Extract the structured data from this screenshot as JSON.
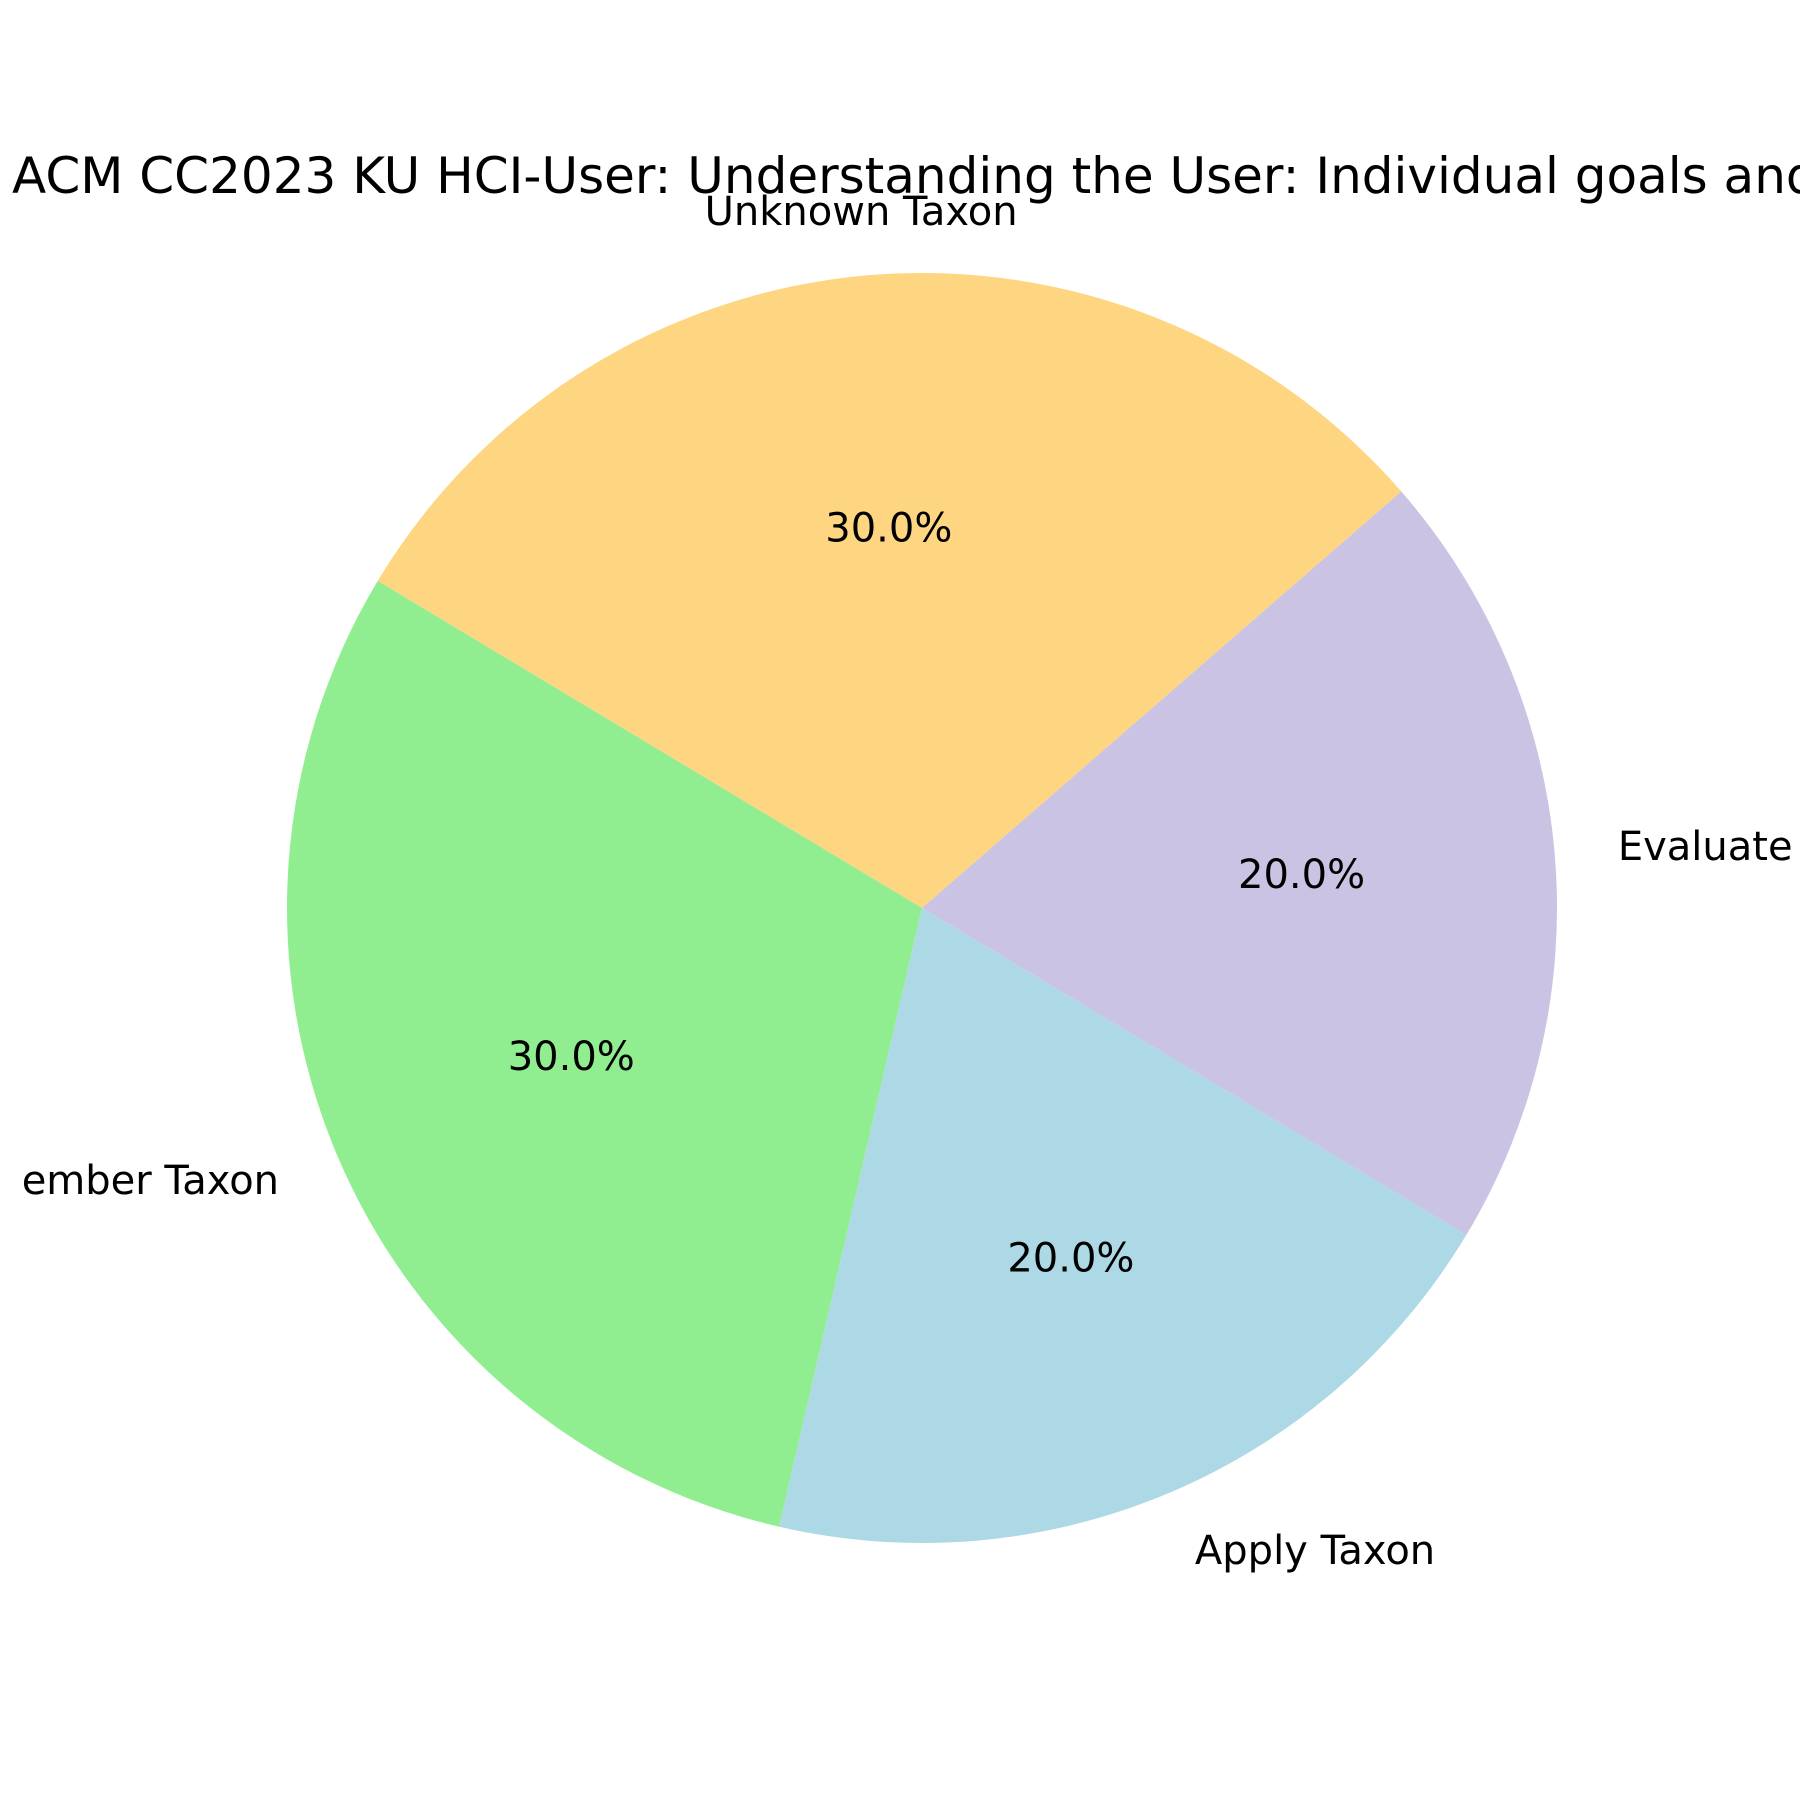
{
  "chart_data": {
    "type": "pie",
    "title": "ACM CC2023 KU HCI-User: Understanding the User: Individual goals and",
    "slices": [
      {
        "label": "Evaluate",
        "value": 20.0,
        "pct_label": "20.0%",
        "color": "#cbc3e3"
      },
      {
        "label": "Unknown Taxon",
        "value": 30.0,
        "pct_label": "30.0%",
        "color": "#fed580"
      },
      {
        "label": "ember Taxon",
        "value": 30.0,
        "pct_label": "30.0%",
        "color": "#90ee90"
      },
      {
        "label": "Apply Taxon",
        "value": 20.0,
        "pct_label": "20.0%",
        "color": "#add8e6"
      }
    ]
  }
}
